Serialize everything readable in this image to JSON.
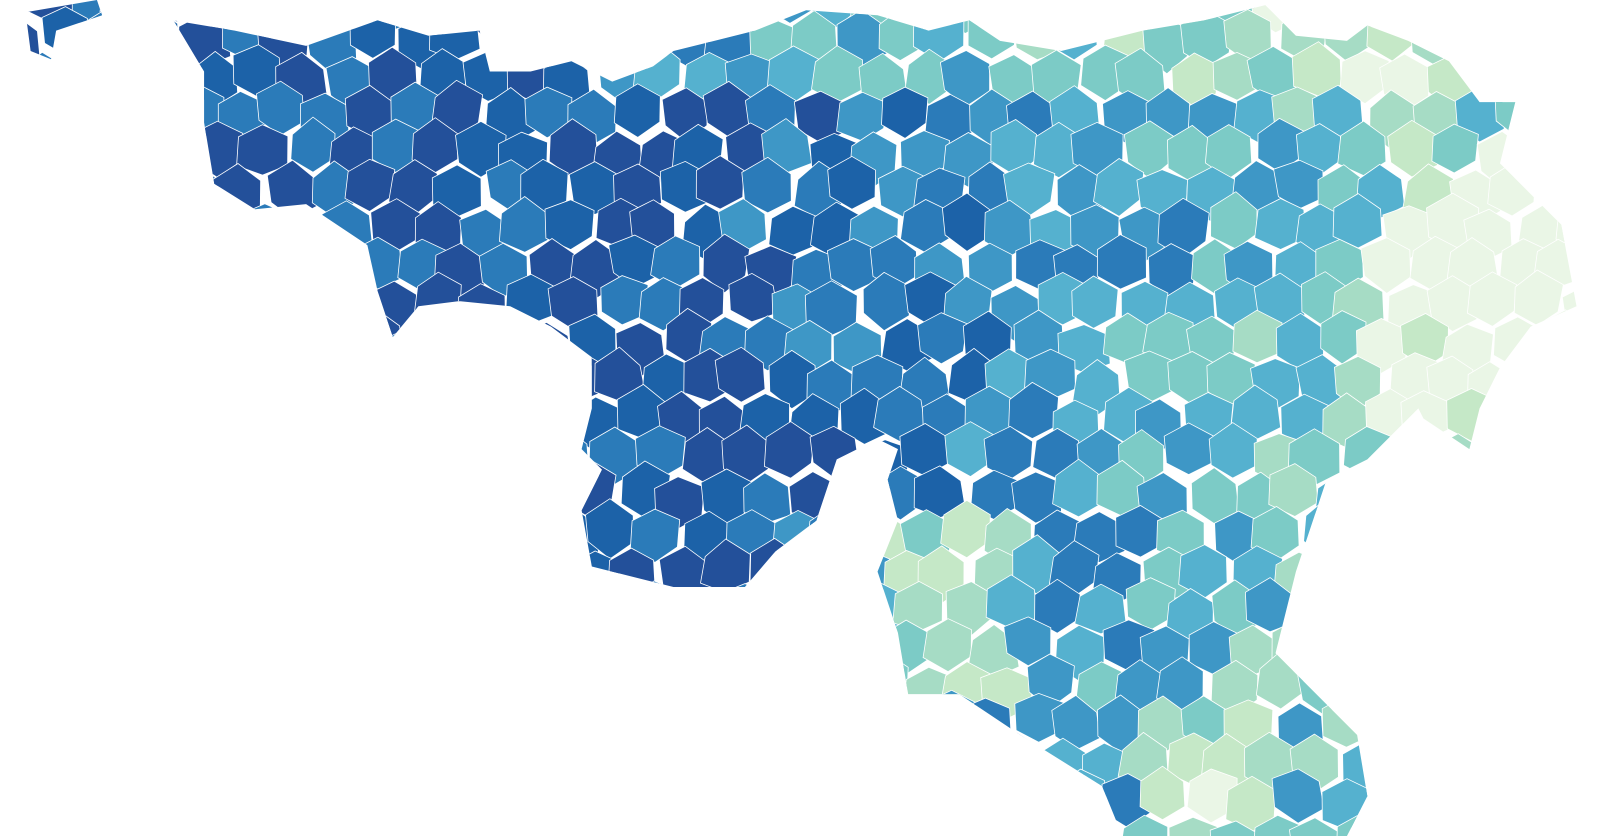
{
  "map": {
    "palette": [
      "#eaf6e6",
      "#c5e8c7",
      "#a6dcc5",
      "#7ccbc6",
      "#55b1cf",
      "#3e97c6",
      "#2b7bb9",
      "#1c62a8",
      "#23509a"
    ]
  }
}
